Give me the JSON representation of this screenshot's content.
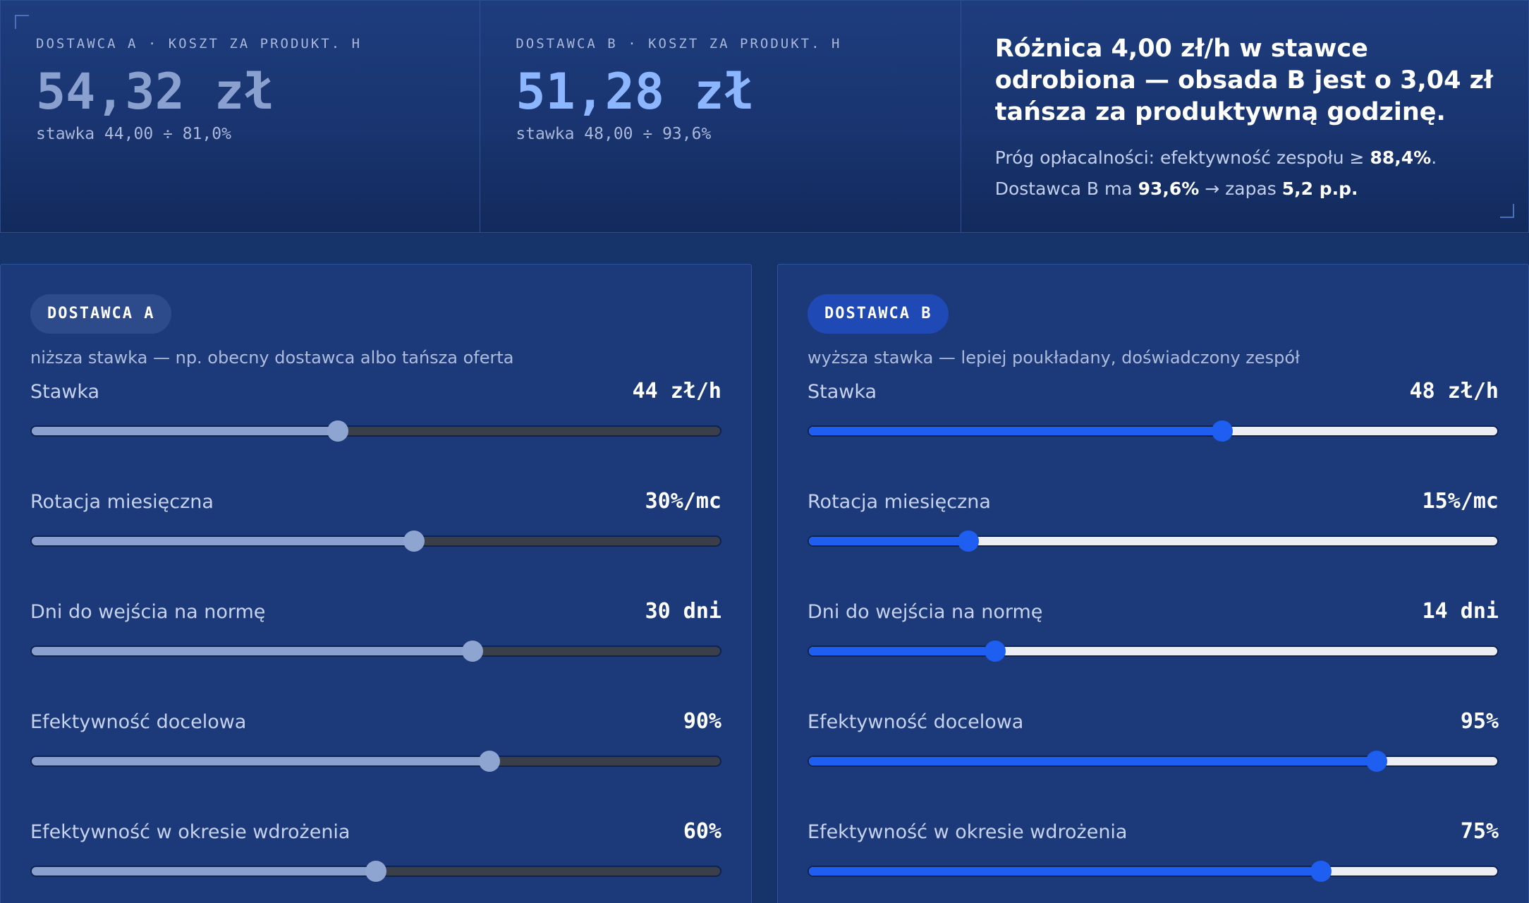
{
  "summary": {
    "supplier_a": {
      "label": "DOSTAWCA A · KOSZT ZA PRODUKT. H",
      "value": "54,32 zł",
      "sub": "stawka 44,00 ÷ 81,0%"
    },
    "supplier_b": {
      "label": "DOSTAWCA B · KOSZT ZA PRODUKT. H",
      "value": "51,28 zł",
      "sub": "stawka 48,00 ÷ 93,6%"
    },
    "verdict": {
      "title": "Różnica 4,00 zł/h w stawce odrobiona — obsada B jest o 3,04 zł tańsza za produktywną godzinę.",
      "line1_pre": "Próg opłacalności: efektywność zespołu ≥ ",
      "line1_hl": "88,4%",
      "line1_post": ".",
      "line2_pre": "Dostawca B ma ",
      "line2_hl1": "93,6%",
      "line2_mid": " → zapas ",
      "line2_hl2": "5,2 p.p."
    }
  },
  "panels": {
    "a": {
      "badge": "DOSTAWCA A",
      "description": "niższa stawka — np. obecny dostawca albo tańsza oferta",
      "controls": [
        {
          "label": "Stawka",
          "value": "44 zł/h",
          "level": 0.445
        },
        {
          "label": "Rotacja miesięczna",
          "value": "30%/mc",
          "level": 0.555
        },
        {
          "label": "Dni do wejścia na normę",
          "value": "30 dni",
          "level": 0.64
        },
        {
          "label": "Efektywność docelowa",
          "value": "90%",
          "level": 0.665
        },
        {
          "label": "Efektywność w okresie wdrożenia",
          "value": "60%",
          "level": 0.5
        }
      ]
    },
    "b": {
      "badge": "DOSTAWCA B",
      "description": "wyższa stawka — lepiej poukładany, doświadczony zespół",
      "controls": [
        {
          "label": "Stawka",
          "value": "48 zł/h",
          "level": 0.6
        },
        {
          "label": "Rotacja miesięczna",
          "value": "15%/mc",
          "level": 0.232
        },
        {
          "label": "Dni do wejścia na normę",
          "value": "14 dni",
          "level": 0.27
        },
        {
          "label": "Efektywność docelowa",
          "value": "95%",
          "level": 0.825
        },
        {
          "label": "Efektywność w okresie wdrożenia",
          "value": "75%",
          "level": 0.744
        }
      ]
    }
  },
  "colors": {
    "background": "#16336a",
    "accent_a": "#8aa1cf",
    "accent_b": "#1e5ef0",
    "value_b": "#8cb6ff"
  }
}
